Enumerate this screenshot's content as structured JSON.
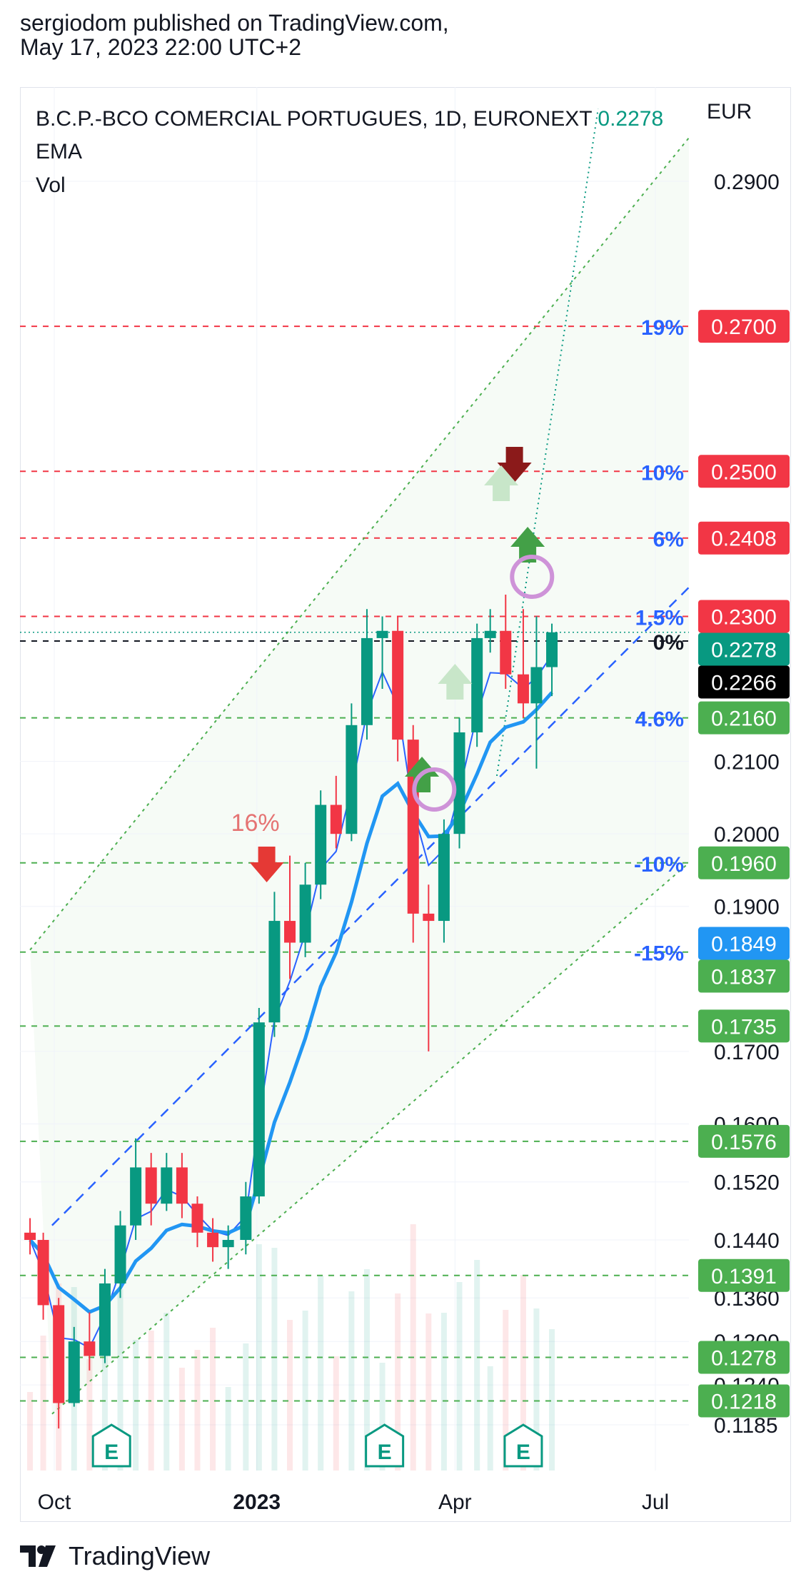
{
  "publisher": {
    "line1": "sergiodom published on TradingView.com,",
    "line2": "May 17, 2023 22:00 UTC+2"
  },
  "legend": {
    "symbol": "B.C.P.-BCO COMERCIAL PORTUGUES, 1D, EURONEXT",
    "last_price": "0.2278",
    "indicator1": "EMA",
    "indicator2": "Vol"
  },
  "currency": "EUR",
  "brand": "TradingView",
  "colors": {
    "up": "#089981",
    "down": "#f23645",
    "ema_fast": "#2962ff",
    "ema_slow": "#2196f3",
    "green_label": "#4caf50",
    "red_label": "#f23645",
    "blue_label": "#2196f3",
    "teal_label": "#089981",
    "pct_text": "#2962ff"
  },
  "chart_data": {
    "type": "candlestick",
    "x_tick_labels": [
      "Oct",
      "2023",
      "Apr",
      "Jul"
    ],
    "y_tick_labels": [
      "0.2900",
      "0.2100",
      "0.2000",
      "0.1900",
      "0.1700",
      "0.1600",
      "0.1520",
      "0.1440",
      "0.1360",
      "0.1300",
      "0.1240",
      "0.1185"
    ],
    "price_labels": [
      {
        "value": "0.2700",
        "color": "red"
      },
      {
        "value": "0.2500",
        "color": "red"
      },
      {
        "value": "0.2408",
        "color": "red"
      },
      {
        "value": "0.2300",
        "color": "red"
      },
      {
        "value": "0.2278",
        "color": "teal"
      },
      {
        "value": "0.2266",
        "color": "black"
      },
      {
        "value": "0.2160",
        "color": "green"
      },
      {
        "value": "0.1960",
        "color": "green"
      },
      {
        "value": "0.1849",
        "color": "blue"
      },
      {
        "value": "0.1837",
        "color": "green"
      },
      {
        "value": "0.1735",
        "color": "green"
      },
      {
        "value": "0.1576",
        "color": "green"
      },
      {
        "value": "0.1391",
        "color": "green"
      },
      {
        "value": "0.1278",
        "color": "green"
      },
      {
        "value": "0.1218",
        "color": "green"
      }
    ],
    "percent_levels": [
      {
        "label": "19%",
        "value": 0.27
      },
      {
        "label": "10%",
        "value": 0.25
      },
      {
        "label": "6%",
        "value": 0.2408
      },
      {
        "label": "1.5%",
        "value": 0.23
      },
      {
        "label": "0%",
        "value": 0.2266
      },
      {
        "label": "4.6%",
        "value": 0.216
      },
      {
        "label": "-10%",
        "value": 0.196
      },
      {
        "label": "-15%",
        "value": 0.1837
      }
    ],
    "annotation": "16%",
    "earnings_markers": [
      "E",
      "E",
      "E"
    ],
    "candles": [
      {
        "d": "2022-09-20",
        "o": 0.145,
        "h": 0.147,
        "l": 0.142,
        "c": 0.144
      },
      {
        "d": "2022-09-26",
        "o": 0.144,
        "h": 0.145,
        "l": 0.133,
        "c": 0.135
      },
      {
        "d": "2022-10-03",
        "o": 0.135,
        "h": 0.136,
        "l": 0.118,
        "c": 0.1215
      },
      {
        "d": "2022-10-10",
        "o": 0.1215,
        "h": 0.132,
        "l": 0.121,
        "c": 0.13
      },
      {
        "d": "2022-10-17",
        "o": 0.13,
        "h": 0.134,
        "l": 0.126,
        "c": 0.128
      },
      {
        "d": "2022-10-24",
        "o": 0.128,
        "h": 0.14,
        "l": 0.127,
        "c": 0.138
      },
      {
        "d": "2022-10-31",
        "o": 0.138,
        "h": 0.148,
        "l": 0.136,
        "c": 0.146
      },
      {
        "d": "2022-11-07",
        "o": 0.146,
        "h": 0.158,
        "l": 0.144,
        "c": 0.154
      },
      {
        "d": "2022-11-14",
        "o": 0.154,
        "h": 0.156,
        "l": 0.146,
        "c": 0.149
      },
      {
        "d": "2022-11-21",
        "o": 0.149,
        "h": 0.156,
        "l": 0.148,
        "c": 0.154
      },
      {
        "d": "2022-11-28",
        "o": 0.154,
        "h": 0.156,
        "l": 0.147,
        "c": 0.149
      },
      {
        "d": "2022-12-05",
        "o": 0.149,
        "h": 0.15,
        "l": 0.143,
        "c": 0.145
      },
      {
        "d": "2022-12-12",
        "o": 0.145,
        "h": 0.147,
        "l": 0.141,
        "c": 0.143
      },
      {
        "d": "2022-12-19",
        "o": 0.143,
        "h": 0.146,
        "l": 0.14,
        "c": 0.144
      },
      {
        "d": "2022-12-27",
        "o": 0.144,
        "h": 0.152,
        "l": 0.142,
        "c": 0.15
      },
      {
        "d": "2023-01-02",
        "o": 0.15,
        "h": 0.176,
        "l": 0.149,
        "c": 0.174
      },
      {
        "d": "2023-01-09",
        "o": 0.174,
        "h": 0.192,
        "l": 0.172,
        "c": 0.188
      },
      {
        "d": "2023-01-16",
        "o": 0.188,
        "h": 0.197,
        "l": 0.18,
        "c": 0.185
      },
      {
        "d": "2023-01-23",
        "o": 0.185,
        "h": 0.196,
        "l": 0.183,
        "c": 0.193
      },
      {
        "d": "2023-01-30",
        "o": 0.193,
        "h": 0.206,
        "l": 0.191,
        "c": 0.204
      },
      {
        "d": "2023-02-06",
        "o": 0.204,
        "h": 0.208,
        "l": 0.198,
        "c": 0.2
      },
      {
        "d": "2023-02-13",
        "o": 0.2,
        "h": 0.218,
        "l": 0.199,
        "c": 0.215
      },
      {
        "d": "2023-02-20",
        "o": 0.215,
        "h": 0.231,
        "l": 0.213,
        "c": 0.227
      },
      {
        "d": "2023-02-27",
        "o": 0.227,
        "h": 0.23,
        "l": 0.22,
        "c": 0.228
      },
      {
        "d": "2023-03-06",
        "o": 0.228,
        "h": 0.23,
        "l": 0.21,
        "c": 0.213
      },
      {
        "d": "2023-03-13",
        "o": 0.213,
        "h": 0.215,
        "l": 0.185,
        "c": 0.189
      },
      {
        "d": "2023-03-20",
        "o": 0.189,
        "h": 0.193,
        "l": 0.17,
        "c": 0.188
      },
      {
        "d": "2023-03-27",
        "o": 0.188,
        "h": 0.202,
        "l": 0.185,
        "c": 0.2
      },
      {
        "d": "2023-04-03",
        "o": 0.2,
        "h": 0.216,
        "l": 0.198,
        "c": 0.214
      },
      {
        "d": "2023-04-11",
        "o": 0.214,
        "h": 0.229,
        "l": 0.212,
        "c": 0.227
      },
      {
        "d": "2023-04-17",
        "o": 0.227,
        "h": 0.231,
        "l": 0.225,
        "c": 0.228
      },
      {
        "d": "2023-04-24",
        "o": 0.228,
        "h": 0.233,
        "l": 0.22,
        "c": 0.222
      },
      {
        "d": "2023-05-02",
        "o": 0.222,
        "h": 0.231,
        "l": 0.216,
        "c": 0.218
      },
      {
        "d": "2023-05-08",
        "o": 0.218,
        "h": 0.23,
        "l": 0.209,
        "c": 0.223
      },
      {
        "d": "2023-05-15",
        "o": 0.223,
        "h": 0.229,
        "l": 0.219,
        "c": 0.2278
      }
    ]
  }
}
